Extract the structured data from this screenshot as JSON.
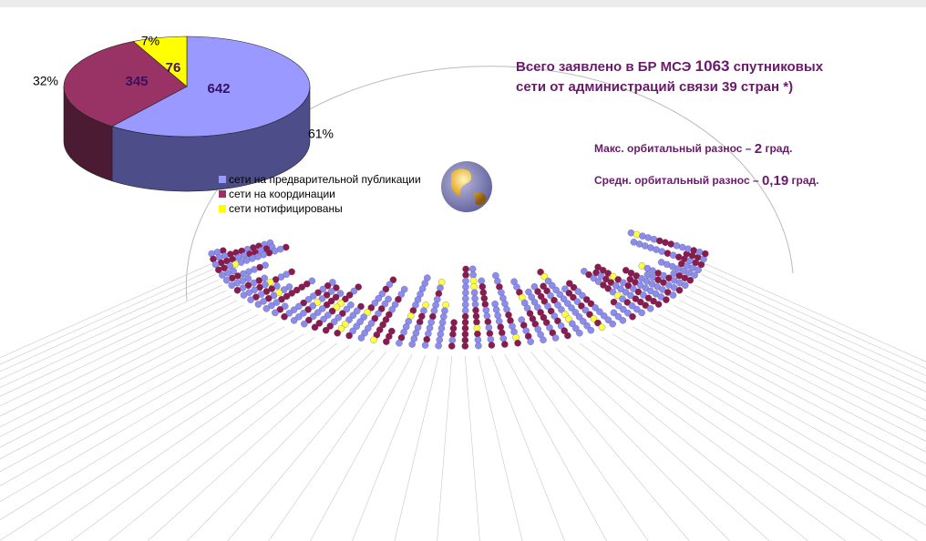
{
  "chart_data": {
    "type": "pie",
    "categories": [
      "сети на предварительной публикации",
      "сети на координации",
      "сети нотифицированы"
    ],
    "values": [
      642,
      345,
      76
    ],
    "shares": [
      "61%",
      "32%",
      "7%"
    ],
    "colors": [
      "#9999ff",
      "#993366",
      "#ffff00"
    ],
    "side_colors": [
      "#4d4d8a",
      "#4a1b33",
      "#8a8a00"
    ]
  },
  "headline": {
    "before": "Всего заявлено в БР МСЭ ",
    "number": "1063",
    "after_line1": " спутниковых",
    "line2": "сети от администраций связи 39 стран *)"
  },
  "notes": [
    {
      "before": "Макс. орбитальный разнос – ",
      "number": "2",
      "after": " град."
    },
    {
      "before": "Средн. орбитальный разнос – ",
      "number": "0,19",
      "after": " град."
    }
  ]
}
